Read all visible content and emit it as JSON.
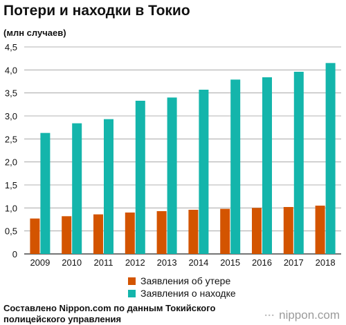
{
  "title": "Потери и находки в Токио",
  "unit_label": "(млн случаев)",
  "chart_data": {
    "type": "bar",
    "categories": [
      "2009",
      "2010",
      "2011",
      "2012",
      "2013",
      "2014",
      "2015",
      "2016",
      "2017",
      "2018"
    ],
    "series": [
      {
        "name": "Заявления об утере",
        "color": "#d35400",
        "values": [
          0.77,
          0.82,
          0.86,
          0.9,
          0.93,
          0.96,
          0.98,
          1.0,
          1.02,
          1.05
        ]
      },
      {
        "name": "Заявления о находке",
        "color": "#14b5ab",
        "values": [
          2.63,
          2.84,
          2.93,
          3.33,
          3.4,
          3.57,
          3.79,
          3.84,
          3.96,
          4.15
        ]
      }
    ],
    "ylim": [
      0,
      4.5
    ],
    "y_ticks": [
      "0",
      "0,5",
      "1,0",
      "1,5",
      "2,0",
      "2,5",
      "3,0",
      "3,5",
      "4,0",
      "4,5"
    ],
    "grid": true,
    "legend_position": "bottom"
  },
  "source_text": "Составлено Nippon.com по данным Токийского полицейского управления",
  "brand": {
    "mark": "···",
    "name": "nippon.com"
  }
}
